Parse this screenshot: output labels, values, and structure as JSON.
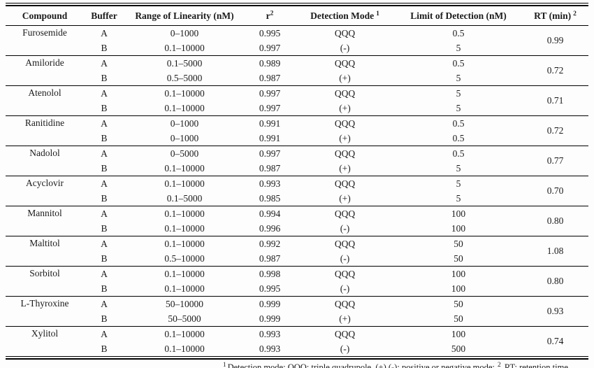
{
  "table": {
    "columns": [
      {
        "label": "Compound",
        "sup": ""
      },
      {
        "label": "Buffer",
        "sup": ""
      },
      {
        "label": "Range of Linearity (nM)",
        "sup": ""
      },
      {
        "label": "r",
        "sup": "2"
      },
      {
        "label": "Detection Mode",
        "sup": "1"
      },
      {
        "label": "Limit of Detection (nM)",
        "sup": ""
      },
      {
        "label": "RT (min)",
        "sup": "2"
      }
    ],
    "rows": [
      {
        "compound": "Furosemide",
        "buffers": [
          "A",
          "B"
        ],
        "range": [
          "0–1000",
          "0.1–10000"
        ],
        "r2": [
          "0.995",
          "0.997"
        ],
        "mode": [
          "QQQ",
          "(-)"
        ],
        "lod": [
          "0.5",
          "5"
        ],
        "rt": "0.99"
      },
      {
        "compound": "Amiloride",
        "buffers": [
          "A",
          "B"
        ],
        "range": [
          "0.1–5000",
          "0.5–5000"
        ],
        "r2": [
          "0.989",
          "0.987"
        ],
        "mode": [
          "QQQ",
          "(+)"
        ],
        "lod": [
          "0.5",
          "5"
        ],
        "rt": "0.72"
      },
      {
        "compound": "Atenolol",
        "buffers": [
          "A",
          "B"
        ],
        "range": [
          "0.1–10000",
          "0.1–10000"
        ],
        "r2": [
          "0.997",
          "0.997"
        ],
        "mode": [
          "QQQ",
          "(+)"
        ],
        "lod": [
          "5",
          "5"
        ],
        "rt": "0.71"
      },
      {
        "compound": "Ranitidine",
        "buffers": [
          "A",
          "B"
        ],
        "range": [
          "0–1000",
          "0–1000"
        ],
        "r2": [
          "0.991",
          "0.991"
        ],
        "mode": [
          "QQQ",
          "(+)"
        ],
        "lod": [
          "0.5",
          "0.5"
        ],
        "rt": "0.72"
      },
      {
        "compound": "Nadolol",
        "buffers": [
          "A",
          "B"
        ],
        "range": [
          "0–5000",
          "0.1–10000"
        ],
        "r2": [
          "0.997",
          "0.987"
        ],
        "mode": [
          "QQQ",
          "(+)"
        ],
        "lod": [
          "0.5",
          "5"
        ],
        "rt": "0.77"
      },
      {
        "compound": "Acyclovir",
        "buffers": [
          "A",
          "B"
        ],
        "range": [
          "0.1–10000",
          "0.1–5000"
        ],
        "r2": [
          "0.993",
          "0.985"
        ],
        "mode": [
          "QQQ",
          "(+)"
        ],
        "lod": [
          "5",
          "5"
        ],
        "rt": "0.70"
      },
      {
        "compound": "Mannitol",
        "buffers": [
          "A",
          "B"
        ],
        "range": [
          "0.1–10000",
          "0.1–10000"
        ],
        "r2": [
          "0.994",
          "0.996"
        ],
        "mode": [
          "QQQ",
          "(-)"
        ],
        "lod": [
          "100",
          "100"
        ],
        "rt": "0.80"
      },
      {
        "compound": "Maltitol",
        "buffers": [
          "A",
          "B"
        ],
        "range": [
          "0.1–10000",
          "0.5–10000"
        ],
        "r2": [
          "0.992",
          "0.987"
        ],
        "mode": [
          "QQQ",
          "(-)"
        ],
        "lod": [
          "50",
          "50"
        ],
        "rt": "1.08"
      },
      {
        "compound": "Sorbitol",
        "buffers": [
          "A",
          "B"
        ],
        "range": [
          "0.1–10000",
          "0.1–10000"
        ],
        "r2": [
          "0.998",
          "0.995"
        ],
        "mode": [
          "QQQ",
          "(-)"
        ],
        "lod": [
          "100",
          "100"
        ],
        "rt": "0.80"
      },
      {
        "compound": "L-Thyroxine",
        "buffers": [
          "A",
          "B"
        ],
        "range": [
          "50–10000",
          "50–5000"
        ],
        "r2": [
          "0.999",
          "0.999"
        ],
        "mode": [
          "QQQ",
          "(+)"
        ],
        "lod": [
          "50",
          "50"
        ],
        "rt": "0.93"
      },
      {
        "compound": "Xylitol",
        "buffers": [
          "A",
          "B"
        ],
        "range": [
          "0.1–10000",
          "0.1–10000"
        ],
        "r2": [
          "0.993",
          "0.993"
        ],
        "mode": [
          "QQQ",
          "(-)"
        ],
        "lod": [
          "100",
          "500"
        ],
        "rt": "0.74"
      }
    ]
  },
  "footnote": {
    "sup1": "1",
    "part1": "Detection mode: QQQ: triple quadrupole, (+) (-): positive or negative mode; ",
    "sup2": "2",
    "part2": " RT: retention time."
  }
}
